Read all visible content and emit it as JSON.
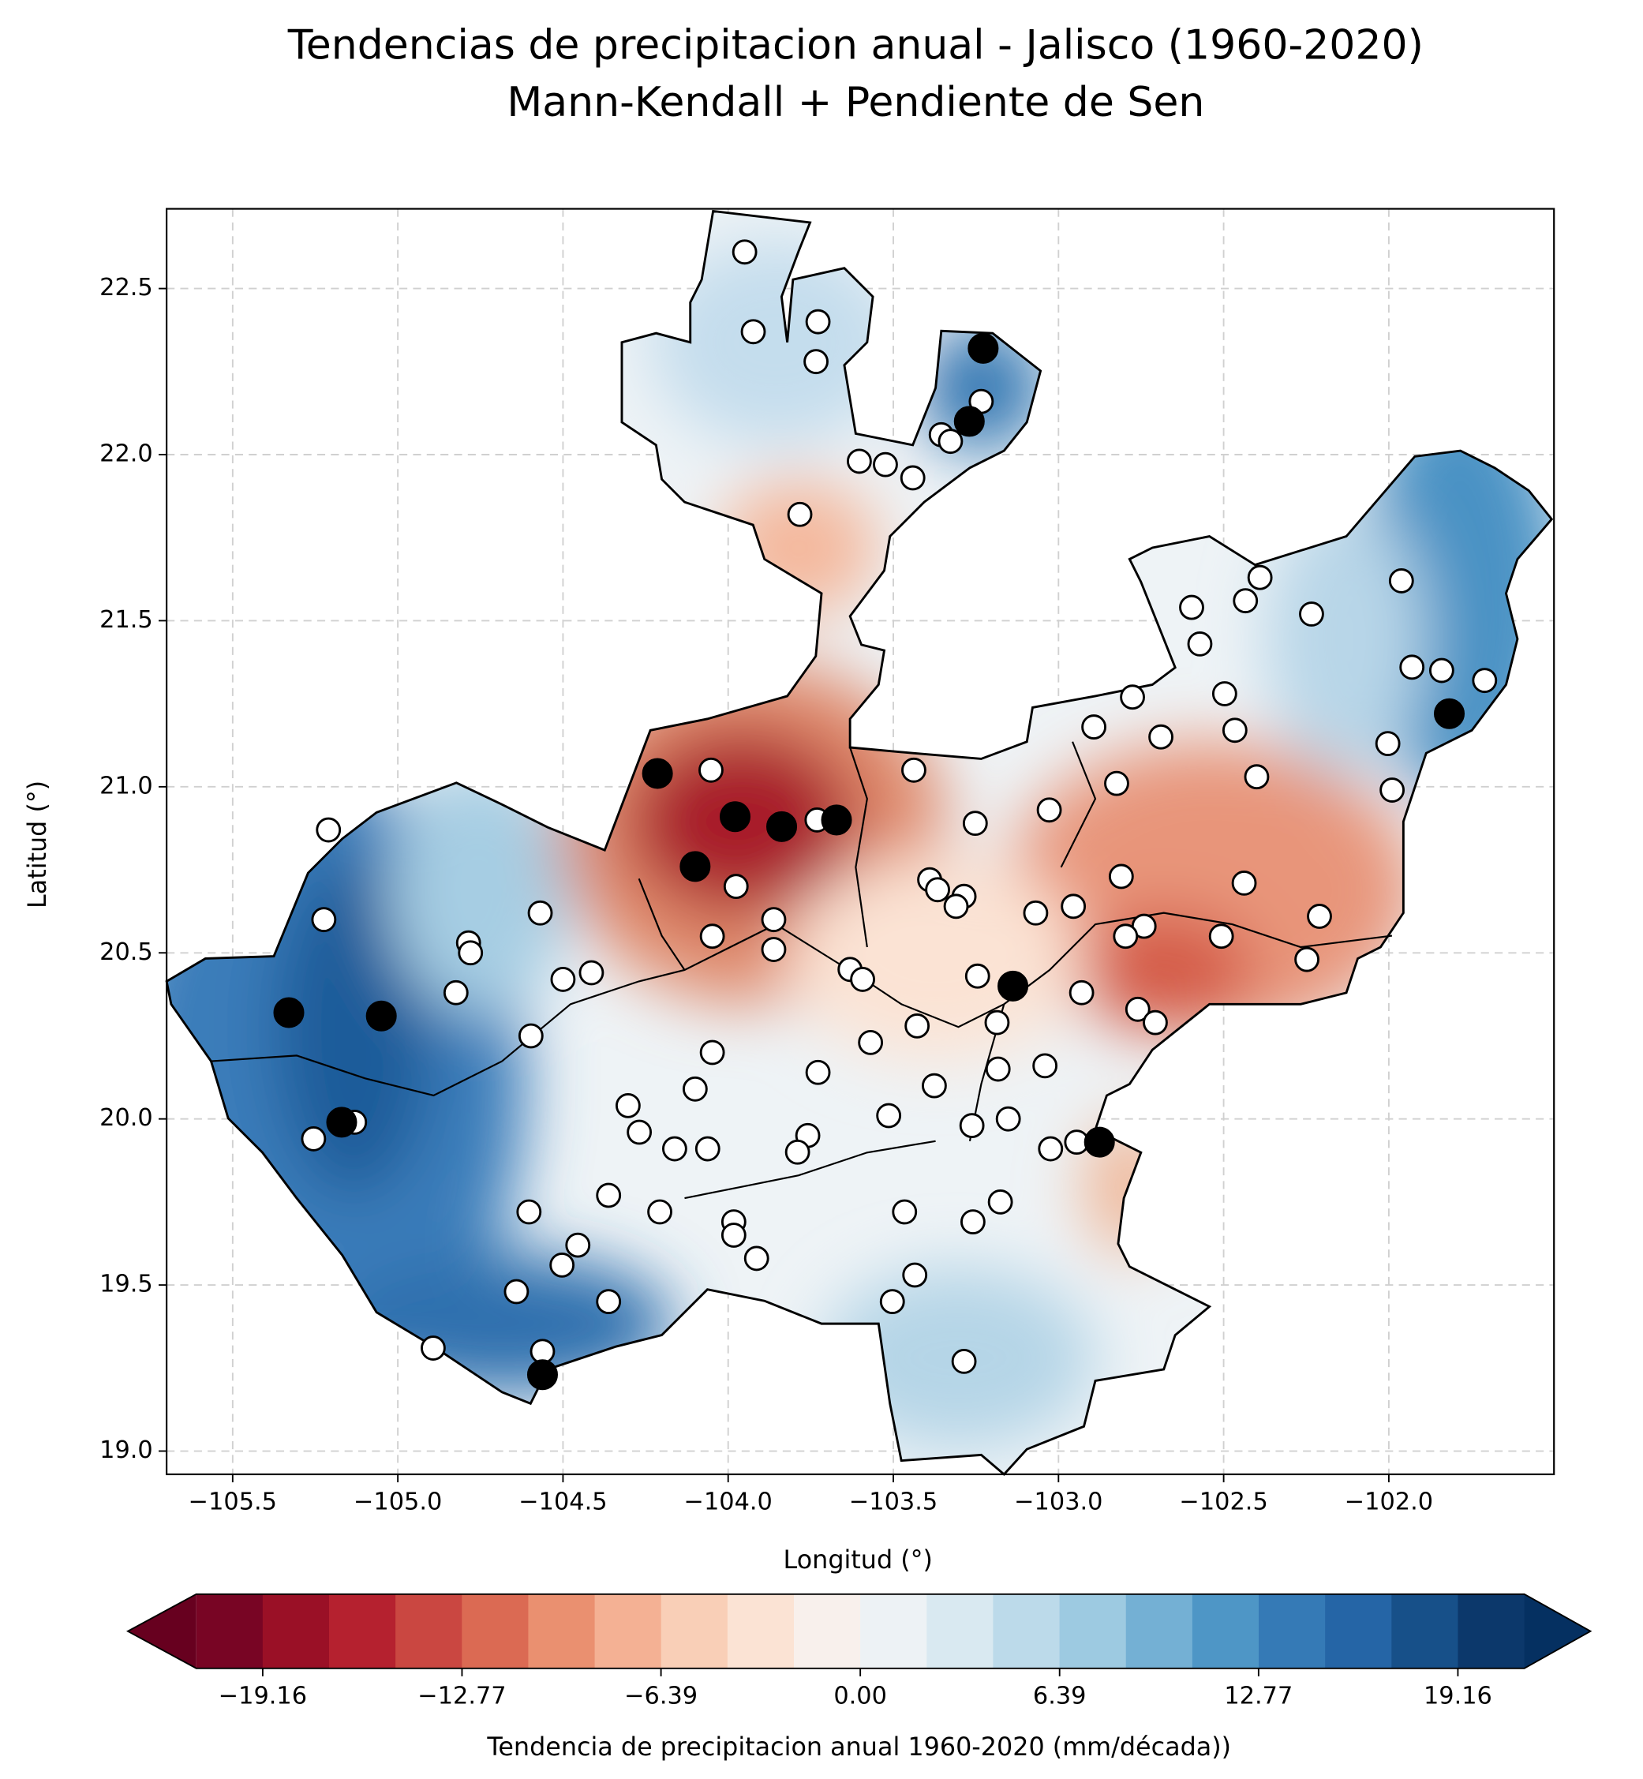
{
  "chart_data": {
    "type": "scatter",
    "title": "Tendencias de precipitacion anual - Jalisco (1960-2020)",
    "subtitle": "Mann-Kendall + Pendiente de Sen",
    "x_label": "Longitud (°)",
    "y_label": "Latitud (°)",
    "xlim": [
      -105.7,
      -101.5
    ],
    "ylim": [
      18.93,
      22.74
    ],
    "xticks": [
      {
        "value": -105.5,
        "label": "−105.5"
      },
      {
        "value": -105.0,
        "label": "−105.0"
      },
      {
        "value": -104.5,
        "label": "−104.5"
      },
      {
        "value": -104.0,
        "label": "−104.0"
      },
      {
        "value": -103.5,
        "label": "−103.5"
      },
      {
        "value": -103.0,
        "label": "−103.0"
      },
      {
        "value": -102.5,
        "label": "−102.5"
      },
      {
        "value": -102.0,
        "label": "−102.0"
      }
    ],
    "yticks": [
      {
        "value": 19,
        "label": "19.0"
      },
      19.5,
      {
        "value": 20,
        "label": "20.0"
      },
      20.5,
      {
        "value": 21,
        "label": "21.0"
      },
      21.5,
      {
        "value": 22,
        "label": "22.0"
      },
      22.5
    ],
    "grid": true,
    "series": [
      {
        "color": "#ffffff",
        "x": [
          -103.95,
          -103.924,
          -103.728,
          -103.734,
          -103.234,
          -103.355,
          -103.327,
          -103.603,
          -103.524,
          -103.441,
          -103.783,
          -101.962,
          -102.39,
          -102.434,
          -102.234,
          -102.597,
          -102.572,
          -101.93,
          -101.84,
          -101.71,
          -102.497,
          -102.776,
          -102.893,
          -102.69,
          -102.466,
          -102.003,
          -101.99,
          -102.4,
          -102.824,
          -104.052,
          -103.438,
          -103.028,
          -103.252,
          -103.731,
          -103.976,
          -103.39,
          -103.366,
          -103.286,
          -103.31,
          -102.81,
          -102.438,
          -103.069,
          -102.955,
          -102.741,
          -102.797,
          -102.507,
          -102.21,
          -102.248,
          -103.862,
          -103.862,
          -104.048,
          -104.569,
          -105.21,
          -105.224,
          -104.786,
          -104.78,
          -104.824,
          -104.414,
          -104.5,
          -103.631,
          -103.593,
          -103.245,
          -102.93,
          -102.76,
          -102.707,
          -103.186,
          -103.428,
          -104.597,
          -104.048,
          -103.569,
          -103.183,
          -103.041,
          -103.728,
          -103.376,
          -104.1,
          -104.303,
          -103.514,
          -103.152,
          -103.262,
          -105.131,
          -105.255,
          -104.269,
          -103.759,
          -103.79,
          -104.162,
          -104.062,
          -103.024,
          -102.945,
          -104.362,
          -104.603,
          -104.207,
          -103.466,
          -103.176,
          -103.259,
          -103.983,
          -103.983,
          -103.914,
          -104.455,
          -104.503,
          -103.435,
          -104.641,
          -104.362,
          -103.503,
          -104.893,
          -104.562,
          -103.286
        ],
        "y": [
          22.61,
          22.37,
          22.4,
          22.28,
          22.16,
          22.06,
          22.04,
          21.98,
          21.97,
          21.93,
          21.82,
          21.62,
          21.63,
          21.56,
          21.52,
          21.54,
          21.43,
          21.36,
          21.35,
          21.32,
          21.28,
          21.27,
          21.18,
          21.15,
          21.17,
          21.13,
          20.99,
          21.03,
          21.01,
          21.05,
          21.05,
          20.93,
          20.89,
          20.9,
          20.7,
          20.72,
          20.69,
          20.67,
          20.64,
          20.73,
          20.71,
          20.62,
          20.64,
          20.58,
          20.55,
          20.55,
          20.61,
          20.48,
          20.6,
          20.51,
          20.55,
          20.62,
          20.87,
          20.6,
          20.53,
          20.5,
          20.38,
          20.44,
          20.42,
          20.45,
          20.42,
          20.43,
          20.38,
          20.33,
          20.29,
          20.29,
          20.28,
          20.25,
          20.2,
          20.23,
          20.15,
          20.16,
          20.14,
          20.1,
          20.09,
          20.04,
          20.01,
          20.0,
          19.98,
          19.99,
          19.94,
          19.96,
          19.95,
          19.9,
          19.91,
          19.91,
          19.91,
          19.93,
          19.77,
          19.72,
          19.72,
          19.72,
          19.75,
          19.69,
          19.69,
          19.65,
          19.58,
          19.62,
          19.56,
          19.53,
          19.48,
          19.45,
          19.45,
          19.31,
          19.3,
          19.27
        ]
      },
      {
        "color": "#000000",
        "x": [
          -103.228,
          -103.27,
          -101.817,
          -104.214,
          -103.979,
          -103.838,
          -103.672,
          -104.1,
          -103.138,
          -105.33,
          -105.05,
          -105.17,
          -102.876,
          -104.562
        ],
        "y": [
          22.32,
          22.1,
          21.22,
          21.04,
          20.91,
          20.88,
          20.9,
          20.76,
          20.4,
          20.32,
          20.31,
          19.99,
          19.93,
          19.23
        ]
      }
    ],
    "colorbar": {
      "label": "Tendencia de precipitacion anual 1960-2020 (mm/década))",
      "lim": [
        -21.29,
        21.29
      ],
      "ticks": [
        {
          "value": -19.16,
          "label": "−19.16"
        },
        {
          "value": -12.77,
          "label": "−12.77"
        },
        {
          "value": -6.39,
          "label": "−6.39"
        },
        {
          "value": 0,
          "label": "0.00"
        },
        6.39,
        12.77,
        19.16
      ],
      "colors": [
        "#780524",
        "#9a1026",
        "#b5212f",
        "#ca4741",
        "#db6a53",
        "#ea9070",
        "#f4b194",
        "#f9cfb7",
        "#fbe3d4",
        "#f8f0ec",
        "#edf2f5",
        "#d9e9f1",
        "#bcdaea",
        "#9dcae1",
        "#74b0d4",
        "#4e96c6",
        "#357ab6",
        "#2565a6",
        "#175089",
        "#0c386b"
      ],
      "under_color": "#67001f",
      "over_color": "#053061"
    }
  }
}
